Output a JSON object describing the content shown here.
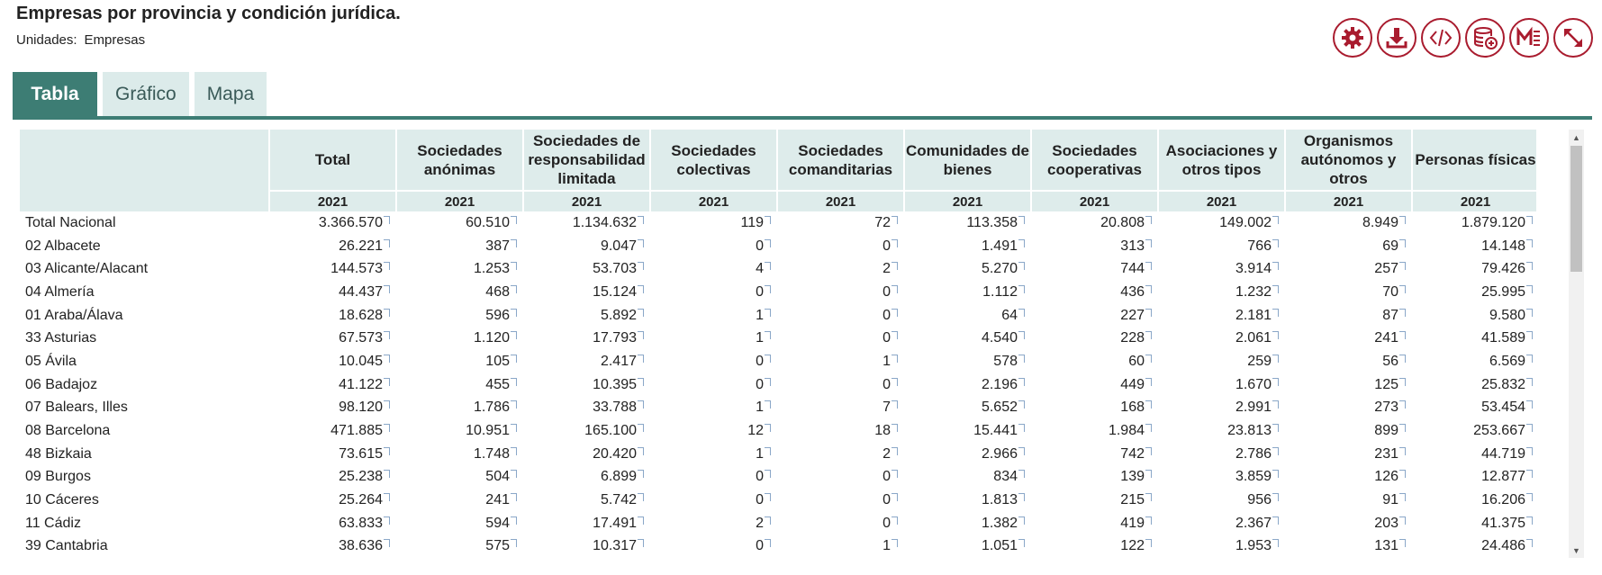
{
  "title": "Empresas por provincia y condición jurídica.",
  "units": {
    "label": "Unidades:",
    "value": "Empresas"
  },
  "toolbar": [
    {
      "name": "settings-button",
      "icon": "gear-icon"
    },
    {
      "name": "download-button",
      "icon": "download-icon"
    },
    {
      "name": "embed-code-button",
      "icon": "code-icon"
    },
    {
      "name": "add-database-button",
      "icon": "database-add-icon"
    },
    {
      "name": "metadata-button",
      "icon": "metadata-icon"
    },
    {
      "name": "fullscreen-button",
      "icon": "expand-icon"
    }
  ],
  "tabs": [
    {
      "label": "Tabla",
      "active": true
    },
    {
      "label": "Gráfico",
      "active": false
    },
    {
      "label": "Mapa",
      "active": false
    }
  ],
  "table": {
    "columns": [
      "Total",
      "Sociedades anónimas",
      "Sociedades de responsabilidad limitada",
      "Sociedades colectivas",
      "Sociedades comanditarias",
      "Comunidades de bienes",
      "Sociedades cooperativas",
      "Asociaciones y otros tipos",
      "Organismos autónomos y otros",
      "Personas físicas"
    ],
    "year": "2021",
    "rows": [
      {
        "label": "Total Nacional",
        "values": [
          "3.366.570",
          "60.510",
          "1.134.632",
          "119",
          "72",
          "113.358",
          "20.808",
          "149.002",
          "8.949",
          "1.879.120"
        ]
      },
      {
        "label": "02 Albacete",
        "values": [
          "26.221",
          "387",
          "9.047",
          "0",
          "0",
          "1.491",
          "313",
          "766",
          "69",
          "14.148"
        ]
      },
      {
        "label": "03 Alicante/Alacant",
        "values": [
          "144.573",
          "1.253",
          "53.703",
          "4",
          "2",
          "5.270",
          "744",
          "3.914",
          "257",
          "79.426"
        ]
      },
      {
        "label": "04 Almería",
        "values": [
          "44.437",
          "468",
          "15.124",
          "0",
          "0",
          "1.112",
          "436",
          "1.232",
          "70",
          "25.995"
        ]
      },
      {
        "label": "01 Araba/Álava",
        "values": [
          "18.628",
          "596",
          "5.892",
          "1",
          "0",
          "64",
          "227",
          "2.181",
          "87",
          "9.580"
        ]
      },
      {
        "label": "33 Asturias",
        "values": [
          "67.573",
          "1.120",
          "17.793",
          "1",
          "0",
          "4.540",
          "228",
          "2.061",
          "241",
          "41.589"
        ]
      },
      {
        "label": "05 Ávila",
        "values": [
          "10.045",
          "105",
          "2.417",
          "0",
          "1",
          "578",
          "60",
          "259",
          "56",
          "6.569"
        ]
      },
      {
        "label": "06 Badajoz",
        "values": [
          "41.122",
          "455",
          "10.395",
          "0",
          "0",
          "2.196",
          "449",
          "1.670",
          "125",
          "25.832"
        ]
      },
      {
        "label": "07 Balears, Illes",
        "values": [
          "98.120",
          "1.786",
          "33.788",
          "1",
          "7",
          "5.652",
          "168",
          "2.991",
          "273",
          "53.454"
        ]
      },
      {
        "label": "08 Barcelona",
        "values": [
          "471.885",
          "10.951",
          "165.100",
          "12",
          "18",
          "15.441",
          "1.984",
          "23.813",
          "899",
          "253.667"
        ]
      },
      {
        "label": "48 Bizkaia",
        "values": [
          "73.615",
          "1.748",
          "20.420",
          "1",
          "2",
          "2.966",
          "742",
          "2.786",
          "231",
          "44.719"
        ]
      },
      {
        "label": "09 Burgos",
        "values": [
          "25.238",
          "504",
          "6.899",
          "0",
          "0",
          "834",
          "139",
          "3.859",
          "126",
          "12.877"
        ]
      },
      {
        "label": "10 Cáceres",
        "values": [
          "25.264",
          "241",
          "5.742",
          "0",
          "0",
          "1.813",
          "215",
          "956",
          "91",
          "16.206"
        ]
      },
      {
        "label": "11 Cádiz",
        "values": [
          "63.833",
          "594",
          "17.491",
          "2",
          "0",
          "1.382",
          "419",
          "2.367",
          "203",
          "41.375"
        ]
      },
      {
        "label": "39 Cantabria",
        "values": [
          "38.636",
          "575",
          "10.317",
          "0",
          "1",
          "1.051",
          "122",
          "1.953",
          "131",
          "24.486"
        ]
      }
    ]
  },
  "colors": {
    "accent_red": "#a91b2e",
    "tab_active": "#3d7d74",
    "tab_inactive": "#dcebea",
    "header_bg": "#deeceb"
  }
}
